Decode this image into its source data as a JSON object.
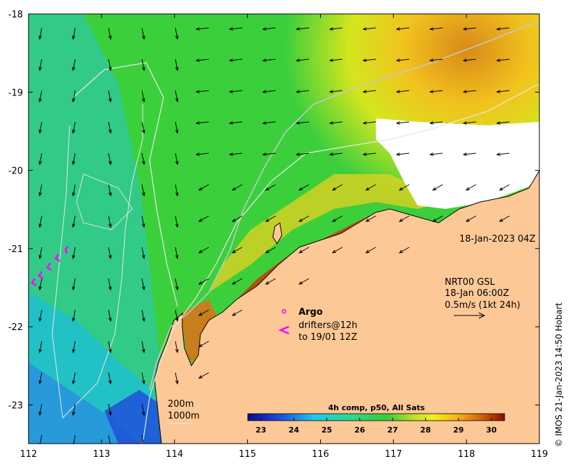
{
  "map": {
    "lon_ticks": [
      "112",
      "113",
      "114",
      "115",
      "116",
      "117",
      "118",
      "119"
    ],
    "lat_ticks": [
      "-18",
      "-19",
      "-20",
      "-21",
      "-22",
      "-23"
    ],
    "timestamp": "18-Jan-2023 04Z",
    "current_legend": {
      "line1": "NRT00 GSL",
      "line2": "18-Jan 06:00Z",
      "line3": "0.5m/s (1kt 24h)"
    },
    "argo_label": "Argo",
    "drifters_line1": "drifters@12h",
    "drifters_line2": "to 19/01 12Z",
    "isobath_200": "200m",
    "isobath_1000": "1000m",
    "credit": "© IMOS 21-Jan-2023 14:50 Hobart"
  },
  "colorbar": {
    "title": "4h comp, p50, All Sats",
    "ticks": [
      "23",
      "24",
      "25",
      "26",
      "27",
      "28",
      "29",
      "30"
    ],
    "range": [
      22.6,
      30.4
    ]
  },
  "colors": {
    "land": "#fcc896",
    "cloud": "#ffffff",
    "drifter": "#ff00ff",
    "isobath": "#e8e8e8"
  }
}
